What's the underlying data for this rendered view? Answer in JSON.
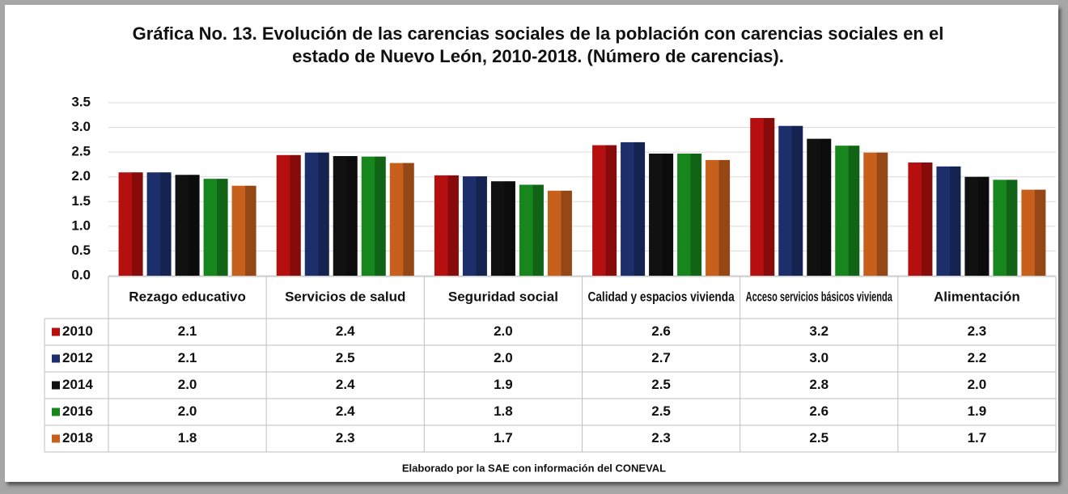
{
  "chart_data": {
    "type": "bar",
    "title": "Gráfica No. 13. Evolución de las carencias sociales de la población con carencias sociales en el estado de Nuevo León, 2010-2018. (Número de carencias).",
    "categories": [
      "Rezago educativo",
      "Servicios de salud",
      "Seguridad social",
      "Calidad y espacios vivienda",
      "Acceso servicios básicos vivienda",
      "Alimentación"
    ],
    "series": [
      {
        "name": "2010",
        "color": "#b50f0f",
        "values": [
          2.09,
          2.44,
          2.03,
          2.64,
          3.19,
          2.29
        ],
        "value_labels": [
          "2.1",
          "2.4",
          "2.0",
          "2.6",
          "3.2",
          "2.3"
        ]
      },
      {
        "name": "2012",
        "color": "#1c2f6b",
        "values": [
          2.09,
          2.49,
          2.01,
          2.7,
          3.03,
          2.21
        ],
        "value_labels": [
          "2.1",
          "2.5",
          "2.0",
          "2.7",
          "3.0",
          "2.2"
        ]
      },
      {
        "name": "2014",
        "color": "#111111",
        "values": [
          2.04,
          2.42,
          1.91,
          2.47,
          2.77,
          2.0
        ],
        "value_labels": [
          "2.0",
          "2.4",
          "1.9",
          "2.5",
          "2.8",
          "2.0"
        ]
      },
      {
        "name": "2016",
        "color": "#17861c",
        "values": [
          1.96,
          2.41,
          1.84,
          2.47,
          2.63,
          1.94
        ],
        "value_labels": [
          "2.0",
          "2.4",
          "1.8",
          "2.5",
          "2.6",
          "1.9"
        ]
      },
      {
        "name": "2018",
        "color": "#c7601c",
        "values": [
          1.82,
          2.28,
          1.72,
          2.34,
          2.49,
          1.74
        ],
        "value_labels": [
          "1.8",
          "2.3",
          "1.7",
          "2.3",
          "2.5",
          "1.7"
        ]
      }
    ],
    "ylim": [
      0,
      3.5
    ],
    "yticks": [
      {
        "value": 0,
        "label": "0.0"
      },
      0.5,
      {
        "value": 1,
        "label": "1.0"
      },
      1.5,
      {
        "value": 2,
        "label": "2.0"
      },
      2.5,
      {
        "value": 3,
        "label": "3.0"
      },
      3.5
    ],
    "grid": true,
    "source": "Elaborado por la SAE con información del CONEVAL"
  }
}
